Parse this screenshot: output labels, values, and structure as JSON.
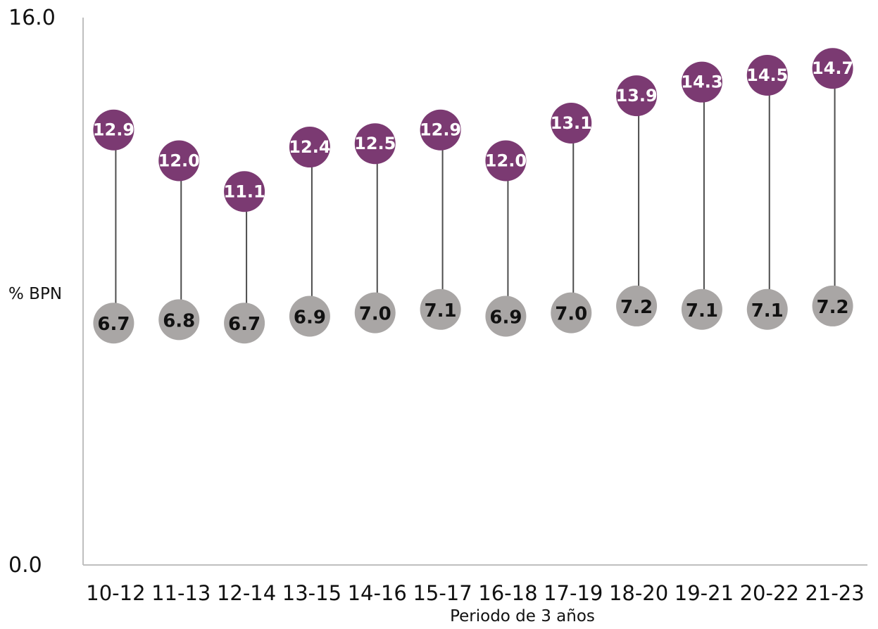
{
  "chart_data": {
    "type": "dumbbell",
    "categories": [
      "10-12",
      "11-13",
      "12-14",
      "13-15",
      "14-16",
      "15-17",
      "16-18",
      "17-19",
      "18-20",
      "19-21",
      "20-22",
      "21-23"
    ],
    "series": [
      {
        "values": [
          12.9,
          12.0,
          11.1,
          12.4,
          12.5,
          12.9,
          12.0,
          13.1,
          13.9,
          14.3,
          14.5,
          14.7
        ],
        "color": "#7b3a72"
      },
      {
        "values": [
          6.7,
          6.8,
          6.7,
          6.9,
          7.0,
          7.1,
          6.9,
          7.0,
          7.2,
          7.1,
          7.1,
          7.2
        ],
        "color": "#a9a6a5"
      }
    ],
    "series_labels": {
      "high": [
        "12.9",
        "12.0",
        "11.1",
        "12.4",
        "12.5",
        "12.9",
        "12.0",
        "13.1",
        "13.9",
        "14.3",
        "14.5",
        "14.7"
      ],
      "low": [
        "6.7",
        "6.8",
        "6.7",
        "6.9",
        "7.0",
        "7.1",
        "6.9",
        "7.0",
        "7.2",
        "7.1",
        "7.1",
        "7.2"
      ]
    },
    "ylabel": "% BPN",
    "xlabel": "Periodo de 3 años",
    "ylim": [
      0,
      16
    ],
    "yticks": [
      "0.0",
      "16.0"
    ],
    "grid": false,
    "connector_color": "#4d4d4d",
    "axis_color": "#bfbfbf"
  }
}
